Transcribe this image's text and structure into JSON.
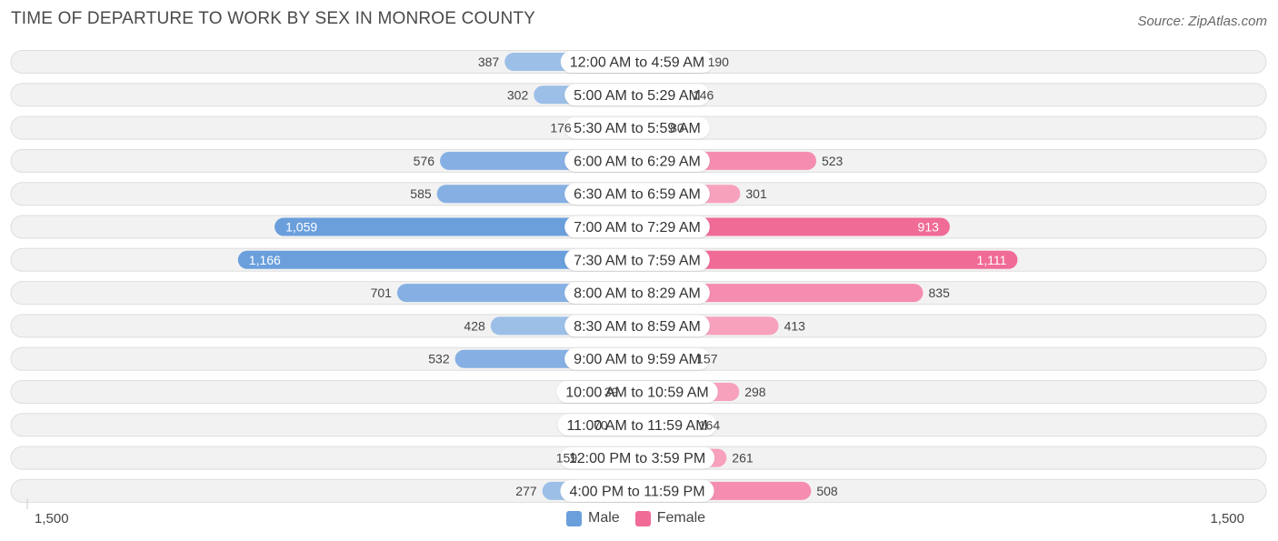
{
  "title": "TIME OF DEPARTURE TO WORK BY SEX IN MONROE COUNTY",
  "source": "Source: ZipAtlas.com",
  "axis": {
    "left_label": "1,500",
    "right_label": "1,500"
  },
  "legend": [
    {
      "name": "Male",
      "color": "#6a9fdc"
    },
    {
      "name": "Female",
      "color": "#f06b96"
    }
  ],
  "colors": {
    "male_strong": "#6a9fdc",
    "male_light": "#b5d0ef",
    "female_strong": "#f06b96",
    "female_light": "#f9b6cb",
    "row_bg": "#f2f2f2",
    "row_border": "#dedede"
  },
  "chart_data": {
    "type": "bar",
    "orientation": "horizontal-diverging",
    "xlim": [
      -1500,
      1500
    ],
    "categories": [
      "12:00 AM to 4:59 AM",
      "5:00 AM to 5:29 AM",
      "5:30 AM to 5:59 AM",
      "6:00 AM to 6:29 AM",
      "6:30 AM to 6:59 AM",
      "7:00 AM to 7:29 AM",
      "7:30 AM to 7:59 AM",
      "8:00 AM to 8:29 AM",
      "8:30 AM to 8:59 AM",
      "9:00 AM to 9:59 AM",
      "10:00 AM to 10:59 AM",
      "11:00 AM to 11:59 AM",
      "12:00 PM to 3:59 PM",
      "4:00 PM to 11:59 PM"
    ],
    "series": [
      {
        "name": "Male",
        "values": [
          387,
          302,
          176,
          576,
          585,
          1059,
          1166,
          701,
          428,
          532,
          39,
          70,
          159,
          277
        ],
        "labels": [
          "387",
          "302",
          "176",
          "576",
          "585",
          "1,059",
          "1,166",
          "701",
          "428",
          "532",
          "39",
          "70",
          "159",
          "277"
        ]
      },
      {
        "name": "Female",
        "values": [
          190,
          146,
          80,
          523,
          301,
          913,
          1111,
          835,
          413,
          157,
          298,
          164,
          261,
          508
        ],
        "labels": [
          "190",
          "146",
          "80",
          "523",
          "301",
          "913",
          "1,111",
          "835",
          "413",
          "157",
          "298",
          "164",
          "261",
          "508"
        ]
      }
    ]
  }
}
